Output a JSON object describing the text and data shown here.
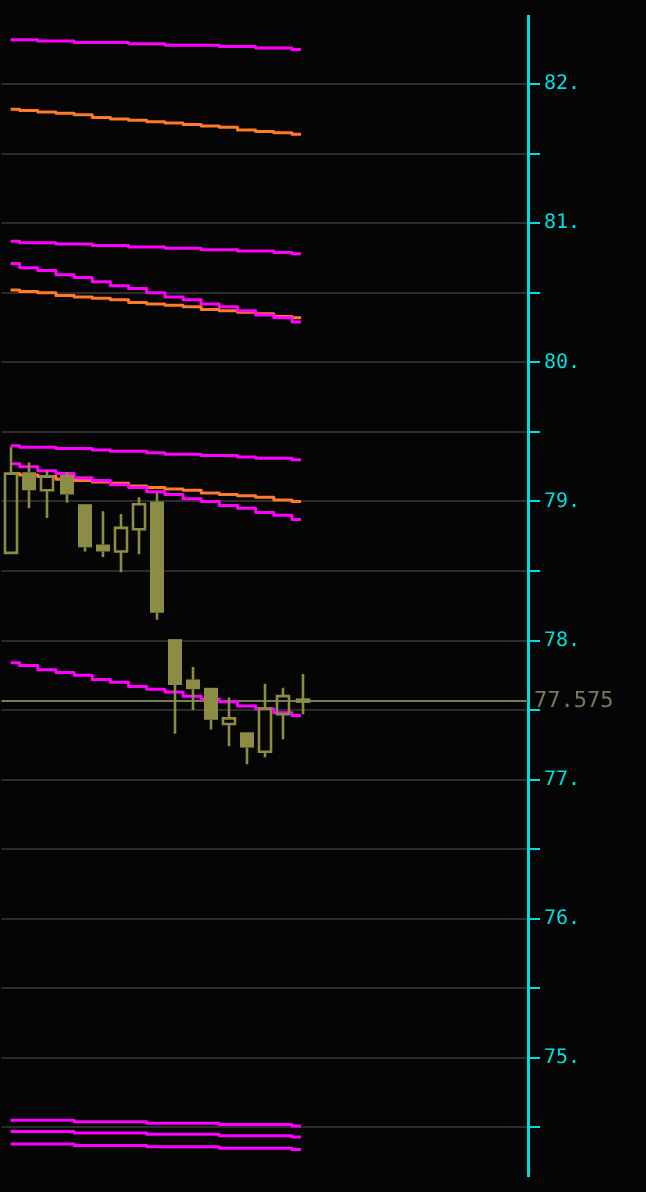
{
  "chart_data": {
    "type": "candlestick",
    "categories": [
      null,
      null,
      null,
      null,
      null,
      null,
      null,
      null,
      null,
      null,
      null,
      null,
      null,
      null,
      null,
      null,
      null
    ],
    "color": "#8c8c45",
    "ohlc": [
      [
        78.63,
        79.39,
        78.63,
        79.2
      ],
      [
        79.21,
        79.28,
        78.95,
        79.08
      ],
      [
        79.08,
        79.22,
        78.88,
        79.18
      ],
      [
        79.19,
        79.21,
        78.99,
        79.05
      ],
      [
        78.98,
        78.98,
        78.64,
        78.67
      ],
      [
        78.69,
        78.93,
        78.6,
        78.64
      ],
      [
        78.64,
        78.91,
        78.49,
        78.81
      ],
      [
        78.8,
        79.03,
        78.62,
        78.98
      ],
      [
        79.0,
        79.06,
        78.15,
        78.2
      ],
      [
        78.01,
        78.01,
        77.33,
        77.68
      ],
      [
        77.72,
        77.81,
        77.5,
        77.65
      ],
      [
        77.66,
        77.66,
        77.36,
        77.43
      ],
      [
        77.4,
        77.59,
        77.24,
        77.44
      ],
      [
        77.34,
        77.34,
        77.11,
        77.23
      ],
      [
        77.2,
        77.69,
        77.16,
        77.51
      ],
      [
        77.47,
        77.66,
        77.29,
        77.6
      ],
      [
        77.57,
        77.76,
        77.47,
        77.575
      ]
    ],
    "series": [
      {
        "type": "step",
        "color": "#ff00ff",
        "values": [
          82.32,
          82.32,
          82.31,
          82.31,
          82.3,
          82.3,
          82.3,
          82.29,
          82.29,
          82.28,
          82.28,
          82.28,
          82.27,
          82.27,
          82.26,
          82.26,
          82.25
        ]
      },
      {
        "type": "step",
        "color": "#ff7a2a",
        "values": [
          81.82,
          81.81,
          81.8,
          81.79,
          81.78,
          81.76,
          81.75,
          81.74,
          81.73,
          81.72,
          81.71,
          81.7,
          81.69,
          81.67,
          81.66,
          81.65,
          81.64
        ]
      },
      {
        "type": "step",
        "color": "#ff00ff",
        "values": [
          80.87,
          80.86,
          80.86,
          80.85,
          80.85,
          80.84,
          80.84,
          80.83,
          80.83,
          80.82,
          80.82,
          80.81,
          80.81,
          80.8,
          80.8,
          80.79,
          80.78
        ]
      },
      {
        "type": "step",
        "color": "#ff00ff",
        "values": [
          80.71,
          80.68,
          80.66,
          80.63,
          80.61,
          80.58,
          80.55,
          80.53,
          80.5,
          80.47,
          80.45,
          80.42,
          80.4,
          80.37,
          80.34,
          80.32,
          80.29
        ]
      },
      {
        "type": "step",
        "color": "#ff7a2a",
        "values": [
          80.52,
          80.51,
          80.5,
          80.48,
          80.47,
          80.46,
          80.45,
          80.43,
          80.42,
          80.41,
          80.4,
          80.38,
          80.37,
          80.36,
          80.35,
          80.33,
          80.32
        ]
      },
      {
        "type": "step",
        "color": "#ff00ff",
        "values": [
          79.4,
          79.39,
          79.39,
          79.38,
          79.38,
          79.37,
          79.36,
          79.36,
          79.35,
          79.34,
          79.34,
          79.33,
          79.33,
          79.32,
          79.31,
          79.31,
          79.3
        ]
      },
      {
        "type": "step",
        "color": "#ff00ff",
        "values": [
          79.27,
          79.25,
          79.22,
          79.2,
          79.17,
          79.15,
          79.12,
          79.1,
          79.07,
          79.05,
          79.02,
          79.0,
          78.97,
          78.95,
          78.92,
          78.9,
          78.87
        ]
      },
      {
        "type": "step",
        "color": "#ff7a2a",
        "values": [
          79.2,
          79.19,
          79.18,
          79.16,
          79.15,
          79.14,
          79.13,
          79.11,
          79.1,
          79.09,
          79.08,
          79.06,
          79.05,
          79.04,
          79.03,
          79.01,
          79.0
        ]
      },
      {
        "type": "step",
        "color": "#ff00ff",
        "values": [
          77.84,
          77.82,
          77.79,
          77.77,
          77.75,
          77.72,
          77.7,
          77.67,
          77.65,
          77.63,
          77.6,
          77.58,
          77.56,
          77.53,
          77.51,
          77.48,
          77.46
        ]
      },
      {
        "type": "step",
        "color": "#ff00ff",
        "values": [
          74.55,
          74.55,
          74.55,
          74.55,
          74.54,
          74.54,
          74.54,
          74.54,
          74.53,
          74.53,
          74.53,
          74.53,
          74.52,
          74.52,
          74.52,
          74.52,
          74.51
        ]
      },
      {
        "type": "step",
        "color": "#ff00ff",
        "values": [
          74.47,
          74.47,
          74.47,
          74.47,
          74.46,
          74.46,
          74.46,
          74.46,
          74.45,
          74.45,
          74.45,
          74.45,
          74.44,
          74.44,
          74.44,
          74.44,
          74.43
        ]
      },
      {
        "type": "step",
        "color": "#ff00ff",
        "values": [
          74.38,
          74.38,
          74.38,
          74.38,
          74.37,
          74.37,
          74.37,
          74.37,
          74.36,
          74.36,
          74.36,
          74.36,
          74.35,
          74.35,
          74.35,
          74.35,
          74.34
        ]
      }
    ],
    "ylim": [
      74.15,
      82.49
    ],
    "yticks": [
      {
        "value": 74.5,
        "label": null
      },
      {
        "value": 75,
        "label": "75."
      },
      {
        "value": 75.5,
        "label": null
      },
      {
        "value": 76,
        "label": "76."
      },
      {
        "value": 76.5,
        "label": null
      },
      {
        "value": 77,
        "label": "77."
      },
      {
        "value": 77.5,
        "label": null
      },
      {
        "value": 78,
        "label": "78."
      },
      {
        "value": 78.5,
        "label": null
      },
      {
        "value": 79,
        "label": "79."
      },
      {
        "value": 79.5,
        "label": null
      },
      {
        "value": 80,
        "label": "80."
      },
      {
        "value": 80.5,
        "label": null
      },
      {
        "value": 81,
        "label": "81."
      },
      {
        "value": 81.5,
        "label": null
      },
      {
        "value": 82,
        "label": "82."
      }
    ],
    "ref_lines": [
      {
        "axis": "y",
        "value": 77.575,
        "label": "77.575",
        "color": "#7a7a5c"
      }
    ],
    "grid": "y",
    "legend": false
  }
}
